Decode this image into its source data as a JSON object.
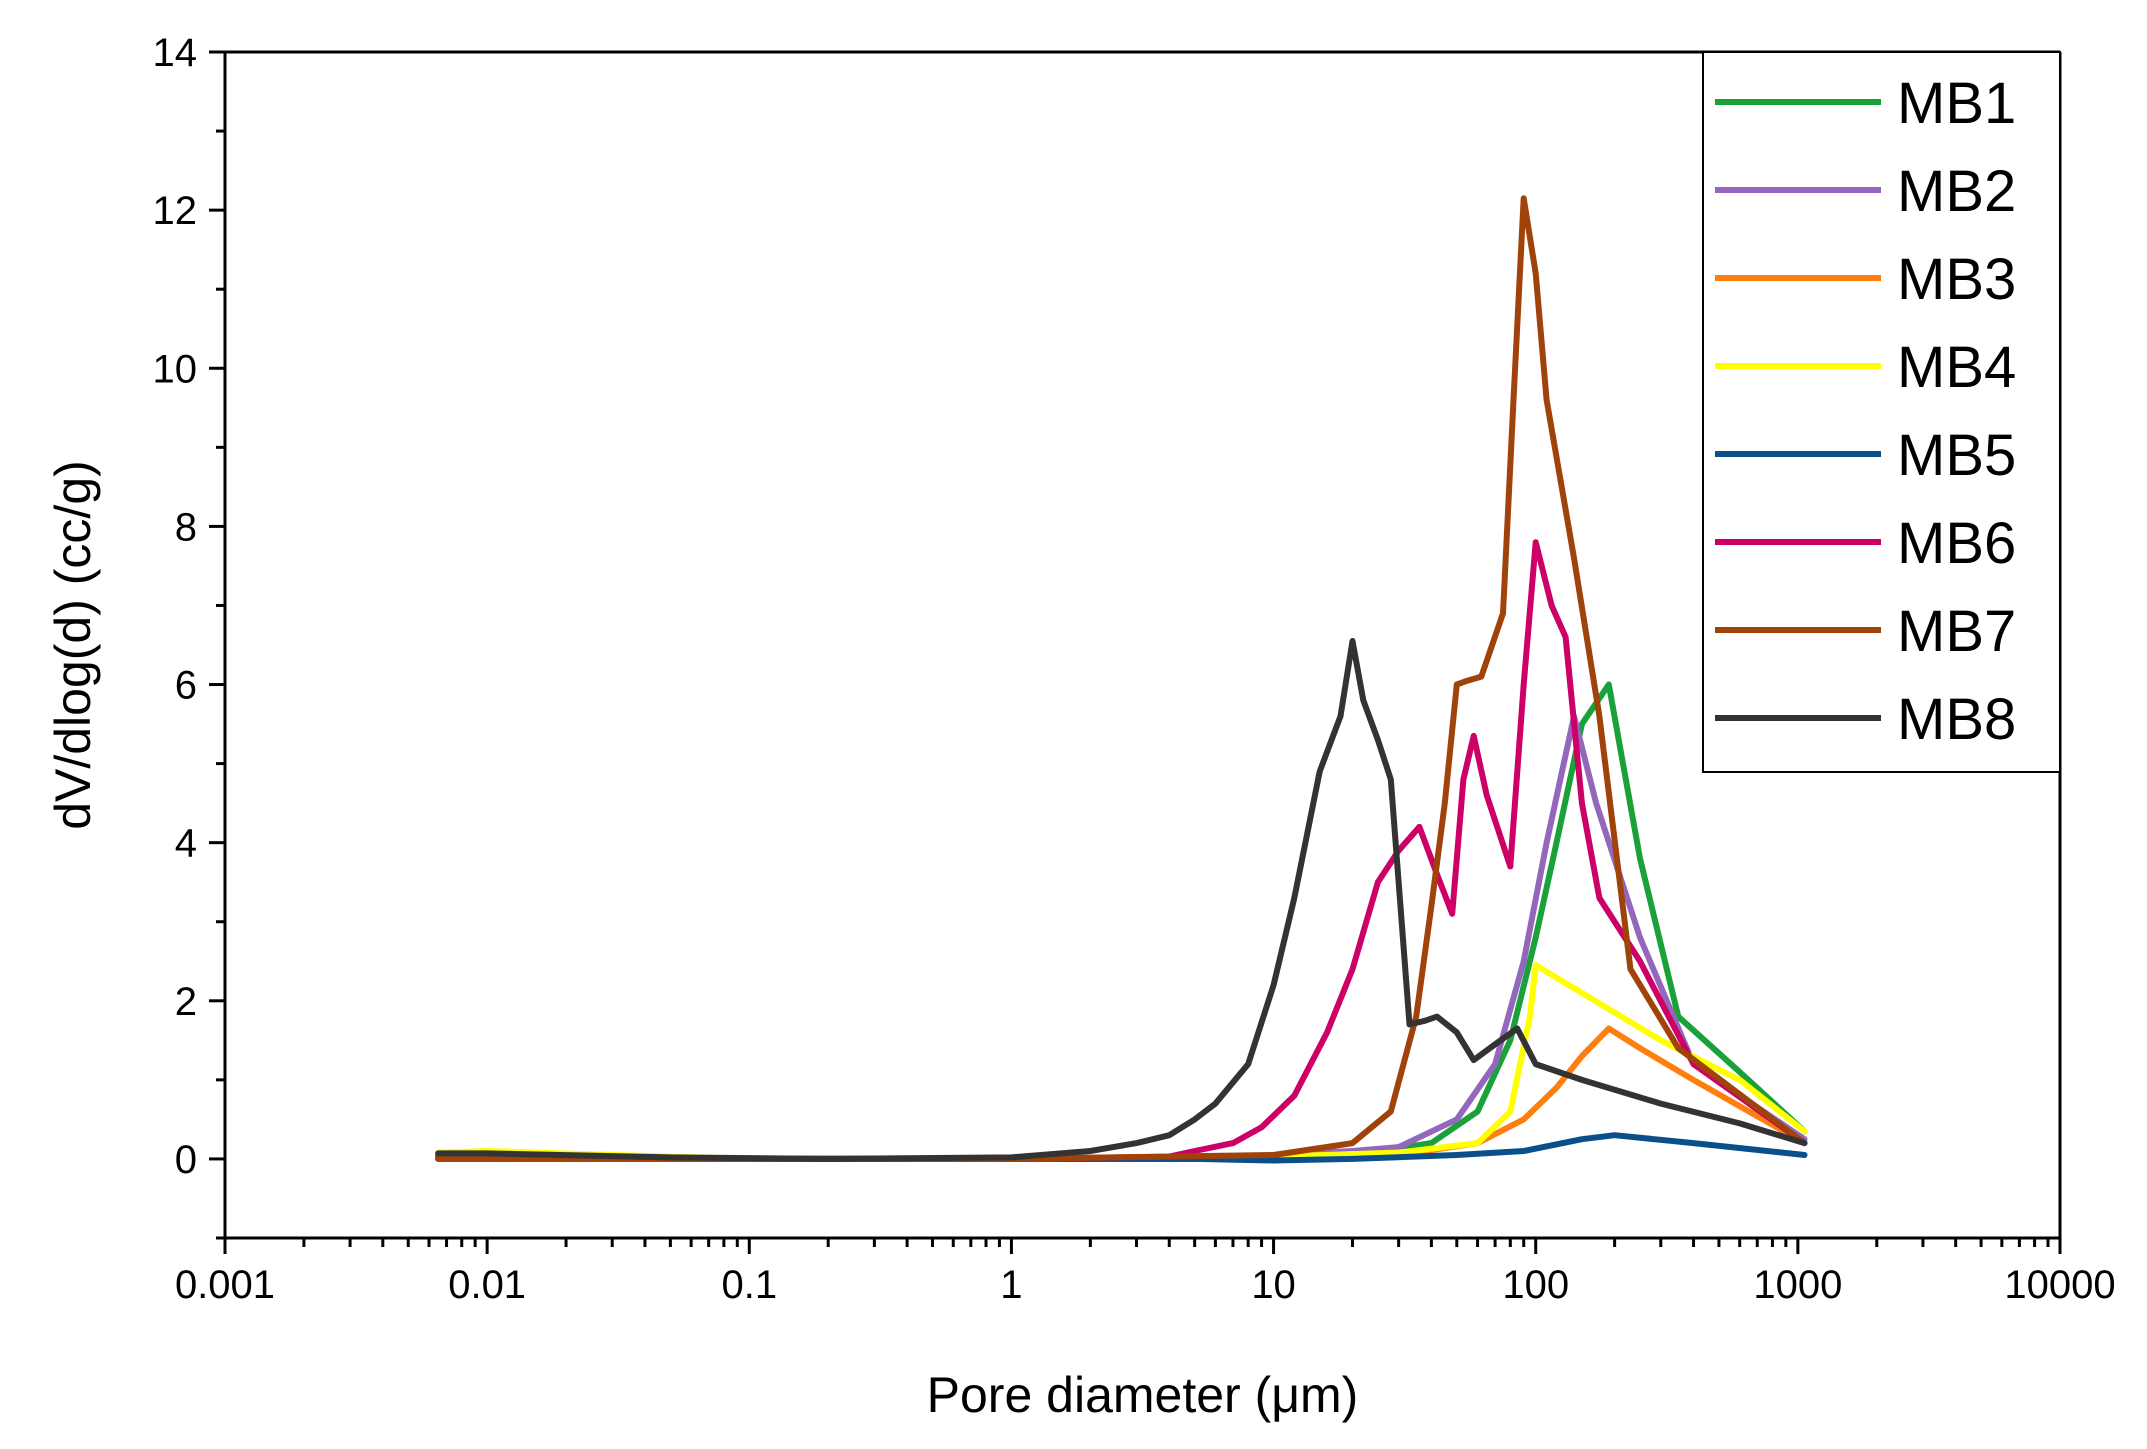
{
  "chart_data": {
    "type": "line",
    "xlabel": "Pore diameter (μm)",
    "ylabel": "dV/dlog(d) (cc/g)",
    "xscale": "log",
    "xlim": [
      0.001,
      10000
    ],
    "ylim": [
      -1,
      14
    ],
    "x_ticks": [
      "0.001",
      "0.01",
      "0.1",
      "1",
      "10",
      "100",
      "1000",
      "10000"
    ],
    "y_ticks": [
      "0",
      "2",
      "4",
      "6",
      "8",
      "10",
      "12",
      "14"
    ],
    "legend_position": "top-right",
    "grid": false,
    "series": [
      {
        "name": "MB1",
        "color": "#1aa13a",
        "points": [
          [
            0.0065,
            0.03
          ],
          [
            0.01,
            0.02
          ],
          [
            0.1,
            0.0
          ],
          [
            1,
            0.0
          ],
          [
            5,
            0.0
          ],
          [
            10,
            0.02
          ],
          [
            20,
            0.05
          ],
          [
            40,
            0.2
          ],
          [
            60,
            0.6
          ],
          [
            80,
            1.5
          ],
          [
            100,
            2.8
          ],
          [
            120,
            4.0
          ],
          [
            150,
            5.5
          ],
          [
            190,
            6.0
          ],
          [
            250,
            3.8
          ],
          [
            350,
            1.8
          ],
          [
            600,
            1.1
          ],
          [
            1060,
            0.35
          ]
        ]
      },
      {
        "name": "MB2",
        "color": "#9467bd",
        "points": [
          [
            0.0065,
            0.05
          ],
          [
            0.02,
            0.05
          ],
          [
            0.1,
            0.0
          ],
          [
            1,
            0.0
          ],
          [
            5,
            0.0
          ],
          [
            10,
            0.05
          ],
          [
            20,
            0.1
          ],
          [
            30,
            0.15
          ],
          [
            50,
            0.5
          ],
          [
            70,
            1.2
          ],
          [
            90,
            2.5
          ],
          [
            110,
            4.0
          ],
          [
            140,
            5.6
          ],
          [
            170,
            4.5
          ],
          [
            250,
            2.8
          ],
          [
            400,
            1.2
          ],
          [
            1060,
            0.25
          ]
        ]
      },
      {
        "name": "MB3",
        "color": "#ff7f0e",
        "points": [
          [
            0.0065,
            0.03
          ],
          [
            0.01,
            0.02
          ],
          [
            0.1,
            0.0
          ],
          [
            1,
            0.0
          ],
          [
            10,
            0.02
          ],
          [
            30,
            0.05
          ],
          [
            60,
            0.2
          ],
          [
            90,
            0.5
          ],
          [
            120,
            0.9
          ],
          [
            150,
            1.3
          ],
          [
            190,
            1.65
          ],
          [
            250,
            1.4
          ],
          [
            400,
            1.0
          ],
          [
            1060,
            0.2
          ]
        ]
      },
      {
        "name": "MB4",
        "color": "#ffff00",
        "points": [
          [
            0.0065,
            0.08
          ],
          [
            0.01,
            0.1
          ],
          [
            0.03,
            0.05
          ],
          [
            0.1,
            0.0
          ],
          [
            1,
            0.0
          ],
          [
            10,
            0.03
          ],
          [
            30,
            0.08
          ],
          [
            60,
            0.2
          ],
          [
            80,
            0.6
          ],
          [
            95,
            1.8
          ],
          [
            100,
            2.45
          ],
          [
            150,
            2.1
          ],
          [
            300,
            1.5
          ],
          [
            600,
            1.0
          ],
          [
            1060,
            0.35
          ]
        ]
      },
      {
        "name": "MB5",
        "color": "#0b4f8a",
        "points": [
          [
            0.0065,
            0.02
          ],
          [
            0.1,
            0.0
          ],
          [
            1,
            0.0
          ],
          [
            5,
            0.0
          ],
          [
            10,
            -0.02
          ],
          [
            20,
            0.0
          ],
          [
            50,
            0.05
          ],
          [
            90,
            0.1
          ],
          [
            150,
            0.25
          ],
          [
            200,
            0.3
          ],
          [
            400,
            0.2
          ],
          [
            1060,
            0.05
          ]
        ]
      },
      {
        "name": "MB6",
        "color": "#cc0066",
        "points": [
          [
            0.0065,
            0.0
          ],
          [
            0.1,
            0.0
          ],
          [
            1,
            0.0
          ],
          [
            4,
            0.03
          ],
          [
            5,
            0.1
          ],
          [
            7,
            0.2
          ],
          [
            9,
            0.4
          ],
          [
            12,
            0.8
          ],
          [
            16,
            1.6
          ],
          [
            20,
            2.4
          ],
          [
            25,
            3.5
          ],
          [
            30,
            3.9
          ],
          [
            36,
            4.2
          ],
          [
            42,
            3.6
          ],
          [
            48,
            3.1
          ],
          [
            53,
            4.8
          ],
          [
            58,
            5.35
          ],
          [
            65,
            4.6
          ],
          [
            80,
            3.7
          ],
          [
            90,
            6.0
          ],
          [
            100,
            7.8
          ],
          [
            115,
            7.0
          ],
          [
            130,
            6.6
          ],
          [
            150,
            4.5
          ],
          [
            175,
            3.3
          ],
          [
            250,
            2.5
          ],
          [
            400,
            1.2
          ],
          [
            1060,
            0.2
          ]
        ]
      },
      {
        "name": "MB7",
        "color": "#a0430a",
        "points": [
          [
            0.0065,
            0.0
          ],
          [
            0.1,
            0.0
          ],
          [
            1,
            0.0
          ],
          [
            10,
            0.05
          ],
          [
            20,
            0.2
          ],
          [
            28,
            0.6
          ],
          [
            35,
            1.8
          ],
          [
            40,
            3.2
          ],
          [
            45,
            4.5
          ],
          [
            50,
            6.0
          ],
          [
            55,
            6.05
          ],
          [
            62,
            6.1
          ],
          [
            75,
            6.9
          ],
          [
            82,
            9.5
          ],
          [
            90,
            12.15
          ],
          [
            100,
            11.2
          ],
          [
            110,
            9.6
          ],
          [
            140,
            7.6
          ],
          [
            175,
            5.6
          ],
          [
            230,
            2.4
          ],
          [
            350,
            1.4
          ],
          [
            1060,
            0.2
          ]
        ]
      },
      {
        "name": "MB8",
        "color": "#333333",
        "points": [
          [
            0.0065,
            0.07
          ],
          [
            0.01,
            0.07
          ],
          [
            0.05,
            0.02
          ],
          [
            0.2,
            0.0
          ],
          [
            1,
            0.02
          ],
          [
            2,
            0.1
          ],
          [
            3,
            0.2
          ],
          [
            4,
            0.3
          ],
          [
            5,
            0.5
          ],
          [
            6,
            0.7
          ],
          [
            8,
            1.2
          ],
          [
            10,
            2.2
          ],
          [
            12,
            3.3
          ],
          [
            15,
            4.9
          ],
          [
            18,
            5.6
          ],
          [
            20,
            6.55
          ],
          [
            22,
            5.8
          ],
          [
            25,
            5.3
          ],
          [
            28,
            4.8
          ],
          [
            33,
            1.7
          ],
          [
            38,
            1.75
          ],
          [
            42,
            1.8
          ],
          [
            50,
            1.6
          ],
          [
            58,
            1.25
          ],
          [
            70,
            1.45
          ],
          [
            85,
            1.65
          ],
          [
            100,
            1.2
          ],
          [
            150,
            1.0
          ],
          [
            300,
            0.7
          ],
          [
            600,
            0.45
          ],
          [
            1060,
            0.2
          ]
        ]
      }
    ]
  }
}
